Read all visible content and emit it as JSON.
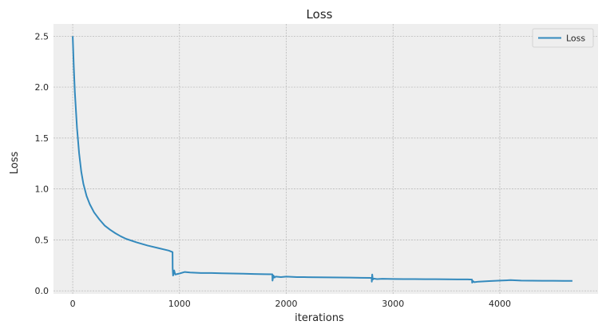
{
  "chart_data": {
    "type": "line",
    "title": "Loss",
    "xlabel": "iterations",
    "ylabel": "Loss",
    "xlim": [
      -180,
      4920
    ],
    "ylim": [
      -0.03,
      2.62
    ],
    "x_ticks": [
      0,
      1000,
      2000,
      3000,
      4000
    ],
    "y_ticks": [
      0.0,
      0.5,
      1.0,
      1.5,
      2.0,
      2.5
    ],
    "x_tick_labels": [
      "0",
      "1000",
      "2000",
      "3000",
      "4000"
    ],
    "y_tick_labels": [
      "0.0",
      "0.5",
      "1.0",
      "1.5",
      "2.0",
      "2.5"
    ],
    "grid": true,
    "legend": {
      "position": "top-right",
      "entries": [
        "Loss"
      ]
    },
    "series": [
      {
        "name": "Loss",
        "color": "#348ABD",
        "x": [
          0,
          10,
          20,
          40,
          60,
          80,
          100,
          130,
          160,
          200,
          250,
          300,
          350,
          400,
          450,
          500,
          600,
          700,
          800,
          900,
          935,
          936,
          940,
          950,
          960,
          980,
          1000,
          1050,
          1100,
          1200,
          1300,
          1400,
          1500,
          1600,
          1700,
          1800,
          1870,
          1871,
          1880,
          1890,
          1900,
          1950,
          2000,
          2100,
          2200,
          2300,
          2400,
          2500,
          2600,
          2700,
          2800,
          2801,
          2805,
          2810,
          2820,
          2850,
          2900,
          3000,
          3100,
          3200,
          3300,
          3400,
          3500,
          3600,
          3700,
          3740,
          3741,
          3750,
          3760,
          3800,
          3900,
          4000,
          4100,
          4200,
          4300,
          4400,
          4500,
          4600,
          4680
        ],
        "values": [
          2.5,
          2.2,
          1.95,
          1.6,
          1.35,
          1.17,
          1.05,
          0.93,
          0.85,
          0.77,
          0.7,
          0.64,
          0.6,
          0.565,
          0.535,
          0.51,
          0.475,
          0.445,
          0.42,
          0.395,
          0.38,
          0.22,
          0.15,
          0.2,
          0.16,
          0.165,
          0.17,
          0.185,
          0.18,
          0.175,
          0.175,
          0.172,
          0.17,
          0.168,
          0.165,
          0.163,
          0.162,
          0.1,
          0.15,
          0.13,
          0.14,
          0.135,
          0.14,
          0.135,
          0.134,
          0.133,
          0.132,
          0.131,
          0.13,
          0.128,
          0.127,
          0.09,
          0.16,
          0.11,
          0.12,
          0.115,
          0.118,
          0.116,
          0.115,
          0.115,
          0.114,
          0.114,
          0.113,
          0.112,
          0.112,
          0.11,
          0.08,
          0.095,
          0.085,
          0.09,
          0.095,
          0.1,
          0.105,
          0.1,
          0.099,
          0.098,
          0.098,
          0.097,
          0.097
        ]
      }
    ]
  }
}
